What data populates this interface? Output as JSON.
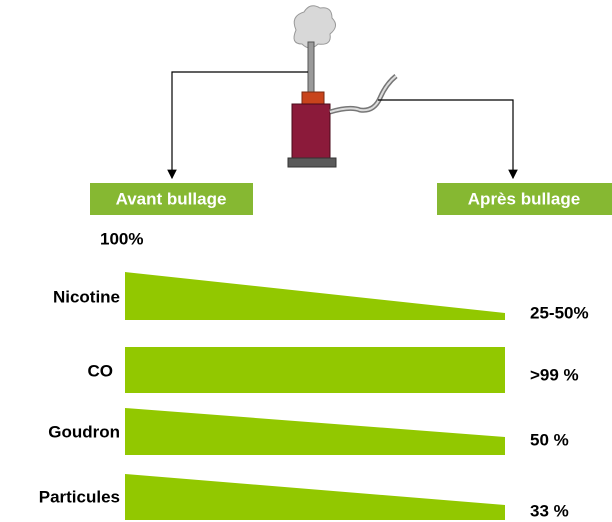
{
  "header": {
    "before": "Avant bullage",
    "after": "Après bullage"
  },
  "start_label": "100%",
  "rows": [
    {
      "label": "Nicotine",
      "value": "25-50%"
    },
    {
      "label": "CO",
      "value": ">99 %"
    },
    {
      "label": "Goudron",
      "value": "50 %"
    },
    {
      "label": "Particules",
      "value": "33 %"
    }
  ]
}
